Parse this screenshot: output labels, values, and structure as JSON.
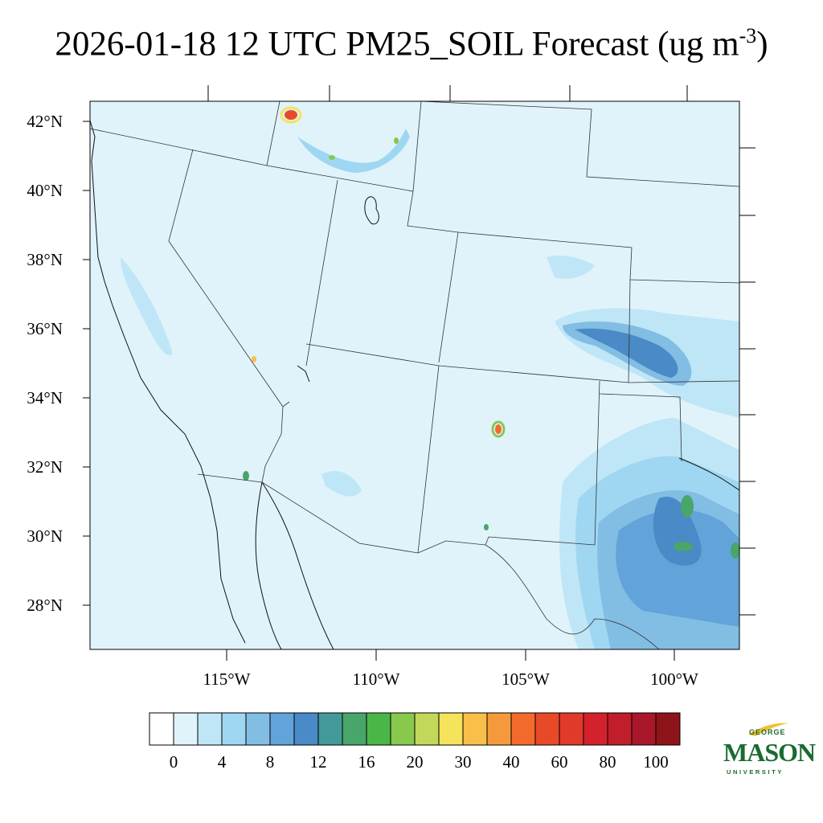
{
  "title": {
    "prefix": "2026-01-18 12 UTC PM25_SOIL Forecast (ug m",
    "superscript": "-3",
    "suffix": ")"
  },
  "map": {
    "lat_labels": [
      "42°N",
      "40°N",
      "38°N",
      "36°N",
      "34°N",
      "32°N",
      "30°N",
      "28°N"
    ],
    "lon_labels": [
      "115°W",
      "110°W",
      "105°W",
      "100°W"
    ],
    "background_color": "#e0f3fb",
    "state_line_color": "#333333"
  },
  "colorbar": {
    "colors": [
      "#ffffff",
      "#e0f3fb",
      "#bfe6f6",
      "#9fd7f2",
      "#82bde3",
      "#62a3d9",
      "#4a8ac6",
      "#449a9a",
      "#48a66a",
      "#4bb648",
      "#88c84c",
      "#c2d85a",
      "#f6e35c",
      "#f8bf4a",
      "#f59a3c",
      "#f26b2c",
      "#e84a28",
      "#e03a2a",
      "#d4222d",
      "#bf1e2a",
      "#a8182a",
      "#8e1419"
    ],
    "labels": [
      "0",
      "4",
      "8",
      "12",
      "16",
      "20",
      "30",
      "40",
      "60",
      "80",
      "100"
    ]
  },
  "logo": {
    "line1": "GEORGE",
    "line2": "MASON",
    "line3": "UNIVERSITY",
    "color": "#1a6b2f"
  }
}
